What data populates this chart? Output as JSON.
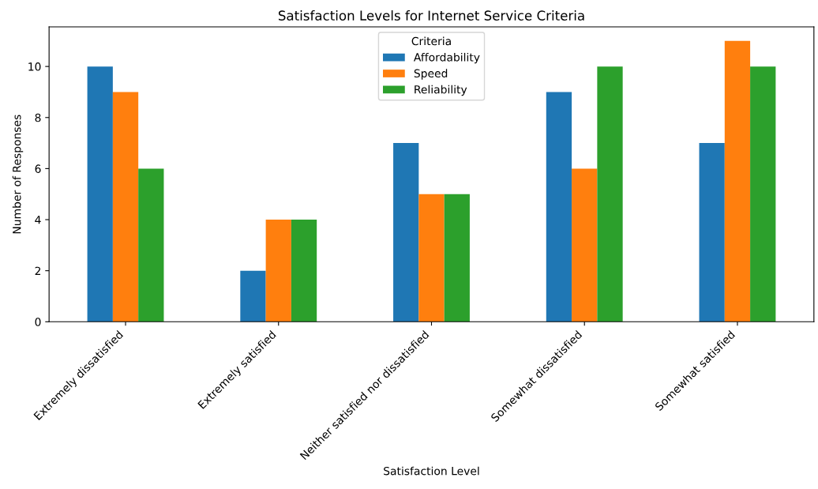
{
  "chart_data": {
    "type": "bar",
    "title": "Satisfaction Levels for Internet Service Criteria",
    "xlabel": "Satisfaction Level",
    "ylabel": "Number of Responses",
    "legend_title": "Criteria",
    "categories": [
      "Extremely dissatisfied",
      "Extremely satisfied",
      "Neither satisfied nor dissatisfied",
      "Somewhat dissatisfied",
      "Somewhat satisfied"
    ],
    "series": [
      {
        "name": "Affordability",
        "color": "#1f77b4",
        "values": [
          10,
          2,
          7,
          9,
          7
        ]
      },
      {
        "name": "Speed",
        "color": "#ff7f0e",
        "values": [
          9,
          4,
          5,
          6,
          11
        ]
      },
      {
        "name": "Reliability",
        "color": "#2ca02c",
        "values": [
          6,
          4,
          5,
          10,
          10
        ]
      }
    ],
    "ylim": [
      0,
      11.55
    ],
    "yticks": [
      0,
      2,
      4,
      6,
      8,
      10
    ],
    "grid": false,
    "legend": "top"
  }
}
